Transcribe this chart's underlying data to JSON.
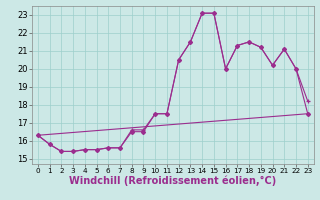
{
  "xlabel": "Windchill (Refroidissement éolien,°C)",
  "ylabel": "",
  "bg_color": "#cce8e6",
  "line_color": "#9b2d8e",
  "xlim": [
    -0.5,
    23.5
  ],
  "ylim": [
    14.7,
    23.5
  ],
  "yticks": [
    15,
    16,
    17,
    18,
    19,
    20,
    21,
    22,
    23
  ],
  "xticks": [
    0,
    1,
    2,
    3,
    4,
    5,
    6,
    7,
    8,
    9,
    10,
    11,
    12,
    13,
    14,
    15,
    16,
    17,
    18,
    19,
    20,
    21,
    22,
    23
  ],
  "series1_x": [
    0,
    1,
    2,
    3,
    4,
    5,
    6,
    7,
    8,
    9,
    10,
    11,
    12,
    13,
    14,
    15,
    16,
    17,
    18,
    19,
    20,
    21,
    22,
    23
  ],
  "series1_y": [
    16.3,
    15.8,
    15.4,
    15.4,
    15.5,
    15.5,
    15.6,
    15.6,
    16.6,
    16.6,
    17.5,
    17.5,
    20.5,
    21.5,
    23.1,
    23.1,
    20.0,
    21.3,
    21.5,
    21.2,
    20.2,
    21.1,
    20.0,
    18.2
  ],
  "series2_x": [
    0,
    1,
    2,
    3,
    4,
    5,
    6,
    7,
    8,
    9,
    10,
    11,
    12,
    13,
    14,
    15,
    16,
    17,
    18,
    19,
    20,
    21,
    22,
    23
  ],
  "series2_y": [
    16.3,
    15.8,
    15.4,
    15.4,
    15.5,
    15.5,
    15.6,
    15.6,
    16.5,
    16.5,
    17.5,
    17.5,
    20.5,
    21.5,
    23.1,
    23.1,
    20.0,
    21.3,
    21.5,
    21.2,
    20.2,
    21.1,
    20.0,
    17.5
  ],
  "series3_x": [
    0,
    23
  ],
  "series3_y": [
    16.3,
    17.5
  ],
  "grid_color": "#9ecfcc",
  "tick_fontsize": 6.0,
  "xlabel_fontsize": 7.0
}
